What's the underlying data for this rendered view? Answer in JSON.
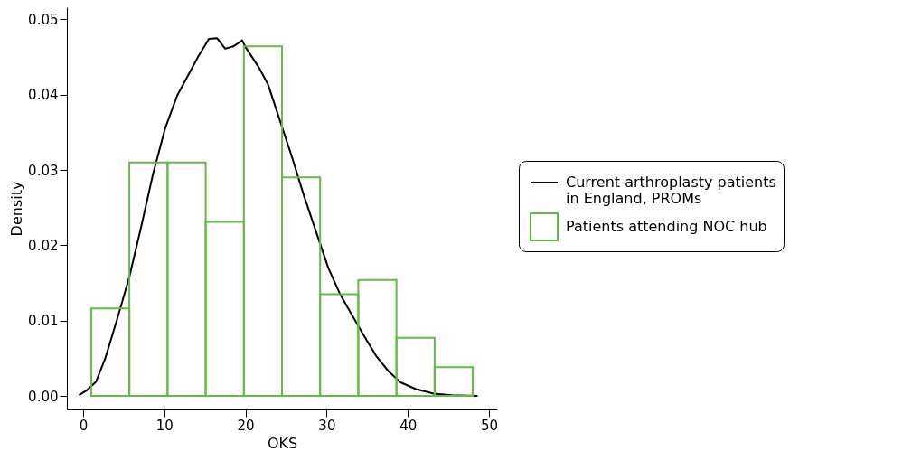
{
  "chart_data": {
    "type": "histogram",
    "xlabel": "OKS",
    "ylabel": "Density",
    "bins": [
      1,
      5.7,
      10.4,
      15.1,
      19.8,
      24.5,
      29.2,
      33.9,
      38.6,
      43.3,
      48
    ],
    "series": [
      {
        "name": "Current arthroplasty patients in England, PROMs",
        "type": "line",
        "color": "#000000",
        "x": [
          -0.5,
          0.4,
          1.6,
          2.7,
          4.2,
          5.7,
          7.1,
          8.6,
          10.1,
          11.6,
          12.7,
          14.2,
          15.5,
          16.5,
          17.5,
          18.5,
          19.6,
          20,
          21.6,
          22.8,
          24.2,
          25.7,
          27.2,
          28.7,
          30.2,
          31.7,
          33.2,
          34.7,
          36.1,
          37.6,
          39.1,
          41,
          43.2,
          45.4,
          48.6
        ],
        "values": [
          0.0001,
          0.0007,
          0.0019,
          0.0049,
          0.0102,
          0.0158,
          0.0222,
          0.0294,
          0.0355,
          0.0399,
          0.0421,
          0.0451,
          0.0474,
          0.0475,
          0.0461,
          0.0464,
          0.0472,
          0.0463,
          0.0437,
          0.0413,
          0.0367,
          0.0318,
          0.0266,
          0.0218,
          0.017,
          0.0134,
          0.0106,
          0.0078,
          0.0053,
          0.0033,
          0.0018,
          0.0009,
          0.0003,
          0.0001,
          0
        ]
      },
      {
        "name": "Patients attending NOC hub",
        "color": "#62bb46",
        "values": [
          0.0116,
          0.031,
          0.031,
          0.0231,
          0.0464,
          0.029,
          0.0135,
          0.0154,
          0.0077,
          0.0038
        ]
      }
    ],
    "xlim": [
      -2,
      51
    ],
    "ylim": [
      -0.0018,
      0.0516
    ],
    "xticks": [
      0,
      10,
      20,
      30,
      40,
      50
    ],
    "yticks": [
      {
        "value": 0,
        "label": "0.00"
      },
      {
        "value": 0.01,
        "label": "0.01"
      },
      {
        "value": 0.02,
        "label": "0.02"
      },
      {
        "value": 0.03,
        "label": "0.03"
      },
      {
        "value": 0.04,
        "label": "0.04"
      },
      {
        "value": 0.05,
        "label": "0.05"
      }
    ],
    "legend": "right",
    "grid": false
  }
}
